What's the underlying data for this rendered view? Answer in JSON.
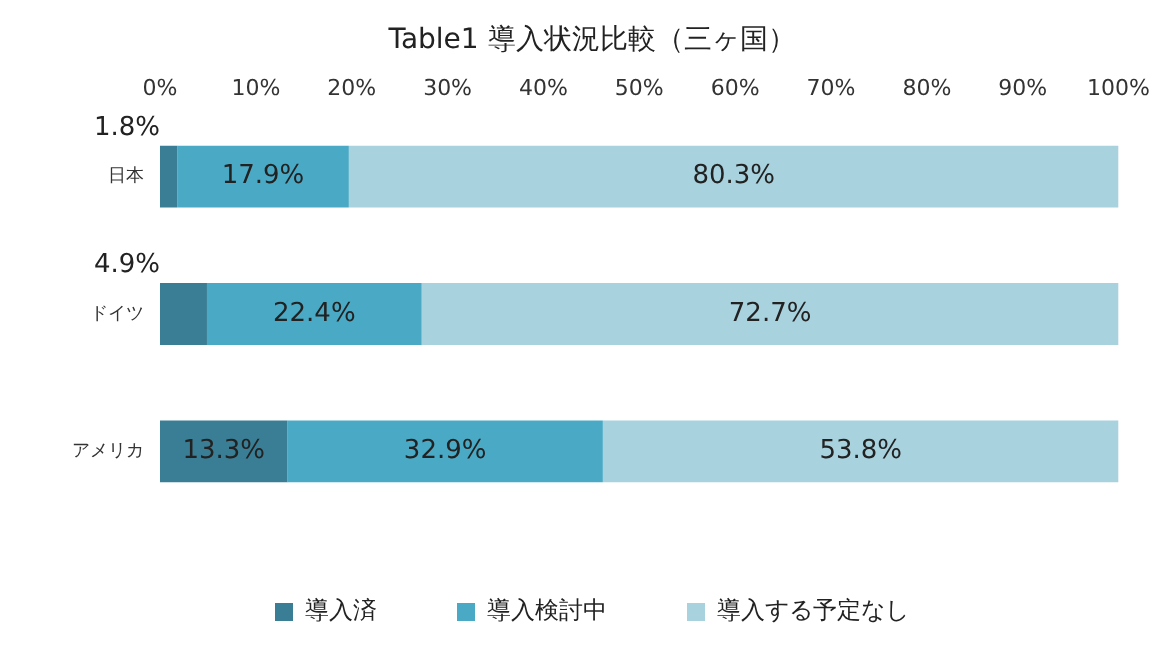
{
  "chart_data": {
    "type": "bar",
    "title": "Table1 導入状況比較（三ヶ国）",
    "orientation": "horizontal",
    "stacked": true,
    "categories": [
      "日本",
      "ドイツ",
      "アメリカ"
    ],
    "series": [
      {
        "name": "導入済",
        "color": "#3a7e95",
        "values": [
          1.8,
          4.9,
          13.3
        ],
        "value_labels": [
          "1.8%",
          "4.9%",
          "13.3%"
        ]
      },
      {
        "name": "導入検討中",
        "color": "#4aaac6",
        "values": [
          17.9,
          22.4,
          32.9
        ],
        "value_labels": [
          "17.9%",
          "22.4%",
          "32.9%"
        ]
      },
      {
        "name": "導入する予定なし",
        "color": "#a8d2de",
        "values": [
          80.3,
          72.7,
          53.8
        ],
        "value_labels": [
          "80.3%",
          "72.7%",
          "53.8%"
        ]
      }
    ],
    "xlim": [
      0,
      100
    ],
    "xticks": [
      {
        "value": 0,
        "label": "0%"
      },
      {
        "value": 10,
        "label": "10%"
      },
      {
        "value": 20,
        "label": "20%"
      },
      {
        "value": 30,
        "label": "30%"
      },
      {
        "value": 40,
        "label": "40%"
      },
      {
        "value": 50,
        "label": "50%"
      },
      {
        "value": 60,
        "label": "60%"
      },
      {
        "value": 70,
        "label": "70%"
      },
      {
        "value": 80,
        "label": "80%"
      },
      {
        "value": 90,
        "label": "90%"
      },
      {
        "value": 100,
        "label": "100%"
      }
    ],
    "grid": false,
    "legend": "bottom"
  }
}
